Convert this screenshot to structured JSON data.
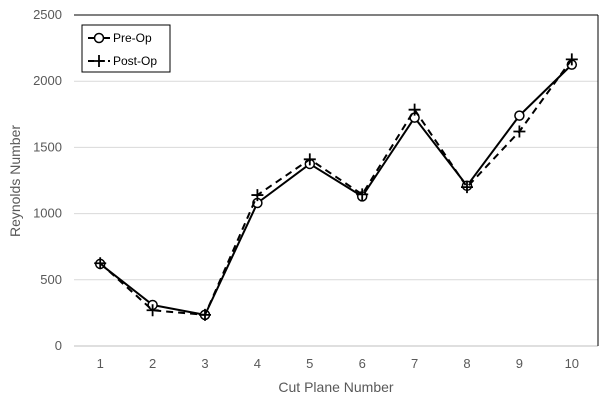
{
  "chart_data": {
    "type": "line",
    "title": "",
    "xlabel": "Cut Plane Number",
    "ylabel": "Reynolds Number",
    "x": [
      1,
      2,
      3,
      4,
      5,
      6,
      7,
      8,
      9,
      10
    ],
    "ylim": [
      0,
      2500
    ],
    "yticks": [
      0,
      500,
      1000,
      1500,
      2000,
      2500
    ],
    "grid": true,
    "legend": "top-left",
    "series": [
      {
        "name": "Pre-Op",
        "marker": "circle",
        "line_style": "solid",
        "color": "#000000",
        "values": [
          620,
          310,
          235,
          1080,
          1375,
          1130,
          1725,
          1210,
          1740,
          2125
        ]
      },
      {
        "name": "Post-Op",
        "marker": "plus",
        "line_style": "dashed",
        "color": "#000000",
        "values": [
          625,
          270,
          235,
          1140,
          1410,
          1145,
          1785,
          1200,
          1620,
          2165
        ]
      }
    ]
  }
}
